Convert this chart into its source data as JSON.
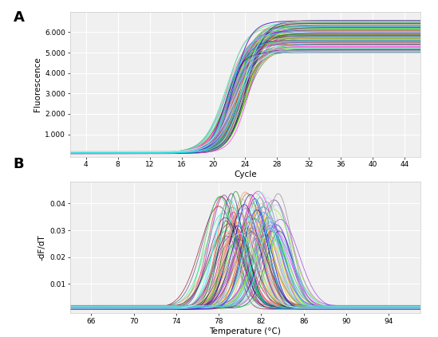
{
  "panel_A": {
    "label": "A",
    "xlabel": "Cycle",
    "ylabel": "Fluorescence",
    "xlim": [
      2,
      46
    ],
    "ylim": [
      -100,
      7000
    ],
    "xticks": [
      4,
      8,
      12,
      16,
      20,
      24,
      28,
      32,
      36,
      40,
      44
    ],
    "yticks": [
      1000,
      2000,
      3000,
      4000,
      5000,
      6000
    ],
    "ytick_labels": [
      "1.000",
      "2.000",
      "3.000",
      "4.000",
      "5.000",
      "6.000"
    ],
    "n_curves": 96,
    "sigmoid_midpoints": [
      22.0,
      22.2,
      22.4,
      22.6,
      22.8,
      23.0,
      23.2,
      23.4,
      23.6,
      23.8,
      24.0,
      24.2,
      21.8,
      21.6,
      22.1,
      22.3,
      22.5,
      22.7,
      22.9,
      23.1,
      23.3,
      23.5,
      23.7,
      23.9,
      24.1,
      21.5,
      22.0,
      22.5,
      23.0,
      23.5,
      24.0,
      21.7,
      22.2,
      22.7,
      23.2,
      23.7,
      24.2,
      21.9,
      22.4,
      22.9,
      23.4,
      23.9,
      22.1,
      22.6,
      23.1,
      23.6,
      24.1,
      21.8,
      22.3,
      22.8,
      23.3,
      23.8,
      24.3,
      22.0,
      22.5,
      23.0,
      23.5,
      24.0,
      21.6,
      22.1,
      22.6,
      23.1,
      23.6,
      24.1,
      21.9,
      22.4,
      22.9,
      23.4,
      23.9,
      22.2,
      22.7,
      23.2,
      23.7,
      24.2,
      21.7,
      22.2,
      22.7,
      23.2,
      23.7,
      24.2,
      21.5,
      22.0,
      22.5,
      23.0,
      23.5,
      24.0,
      21.8,
      22.3,
      22.8,
      23.3,
      23.8,
      21.6,
      22.1,
      22.6,
      23.1,
      23.6
    ]
  },
  "panel_B": {
    "label": "B",
    "xlabel": "Temperature (°C)",
    "ylabel": "-dF/dT",
    "xlim": [
      64,
      97
    ],
    "ylim": [
      -0.001,
      0.048
    ],
    "xticks": [
      66,
      70,
      74,
      78,
      82,
      86,
      90,
      94
    ],
    "yticks": [
      0.01,
      0.02,
      0.03,
      0.04
    ],
    "ytick_labels": [
      "0.01",
      "0.02",
      "0.03",
      "0.04"
    ],
    "n_curves": 96,
    "peak_positions": [
      78.0,
      78.3,
      78.6,
      78.9,
      79.2,
      79.5,
      79.8,
      80.1,
      80.4,
      80.7,
      81.0,
      81.3,
      81.6,
      81.9,
      82.2,
      82.5,
      82.8,
      83.1,
      83.4,
      83.7,
      78.2,
      78.5,
      78.8,
      79.1,
      79.4,
      79.7,
      80.0,
      80.3,
      80.6,
      80.9,
      81.2,
      81.5,
      81.8,
      82.1,
      82.4,
      82.7,
      83.0,
      83.3,
      83.6,
      78.4,
      78.7,
      79.0,
      79.3,
      79.6,
      79.9,
      80.2,
      80.5,
      80.8,
      81.1,
      81.4,
      81.7,
      82.0,
      82.3,
      82.6,
      82.9,
      83.2,
      83.5,
      78.1,
      78.4,
      78.7,
      79.0,
      79.3,
      79.6,
      79.9,
      80.2,
      80.5,
      80.8,
      81.1,
      81.4,
      81.7,
      82.0,
      82.3,
      82.6,
      82.9,
      83.2,
      83.5,
      83.8,
      78.6,
      79.2,
      79.8,
      80.4,
      81.0,
      81.6,
      82.2,
      82.8,
      83.4,
      78.5,
      79.5,
      80.5,
      81.5,
      82.5,
      83.5,
      79.0,
      80.0,
      81.0,
      82.0
    ]
  },
  "plot_bg_color": "#f0f0f0",
  "grid_color": "#ffffff",
  "line_alpha": 0.7,
  "line_width": 0.6,
  "outer_bg": "#ffffff"
}
